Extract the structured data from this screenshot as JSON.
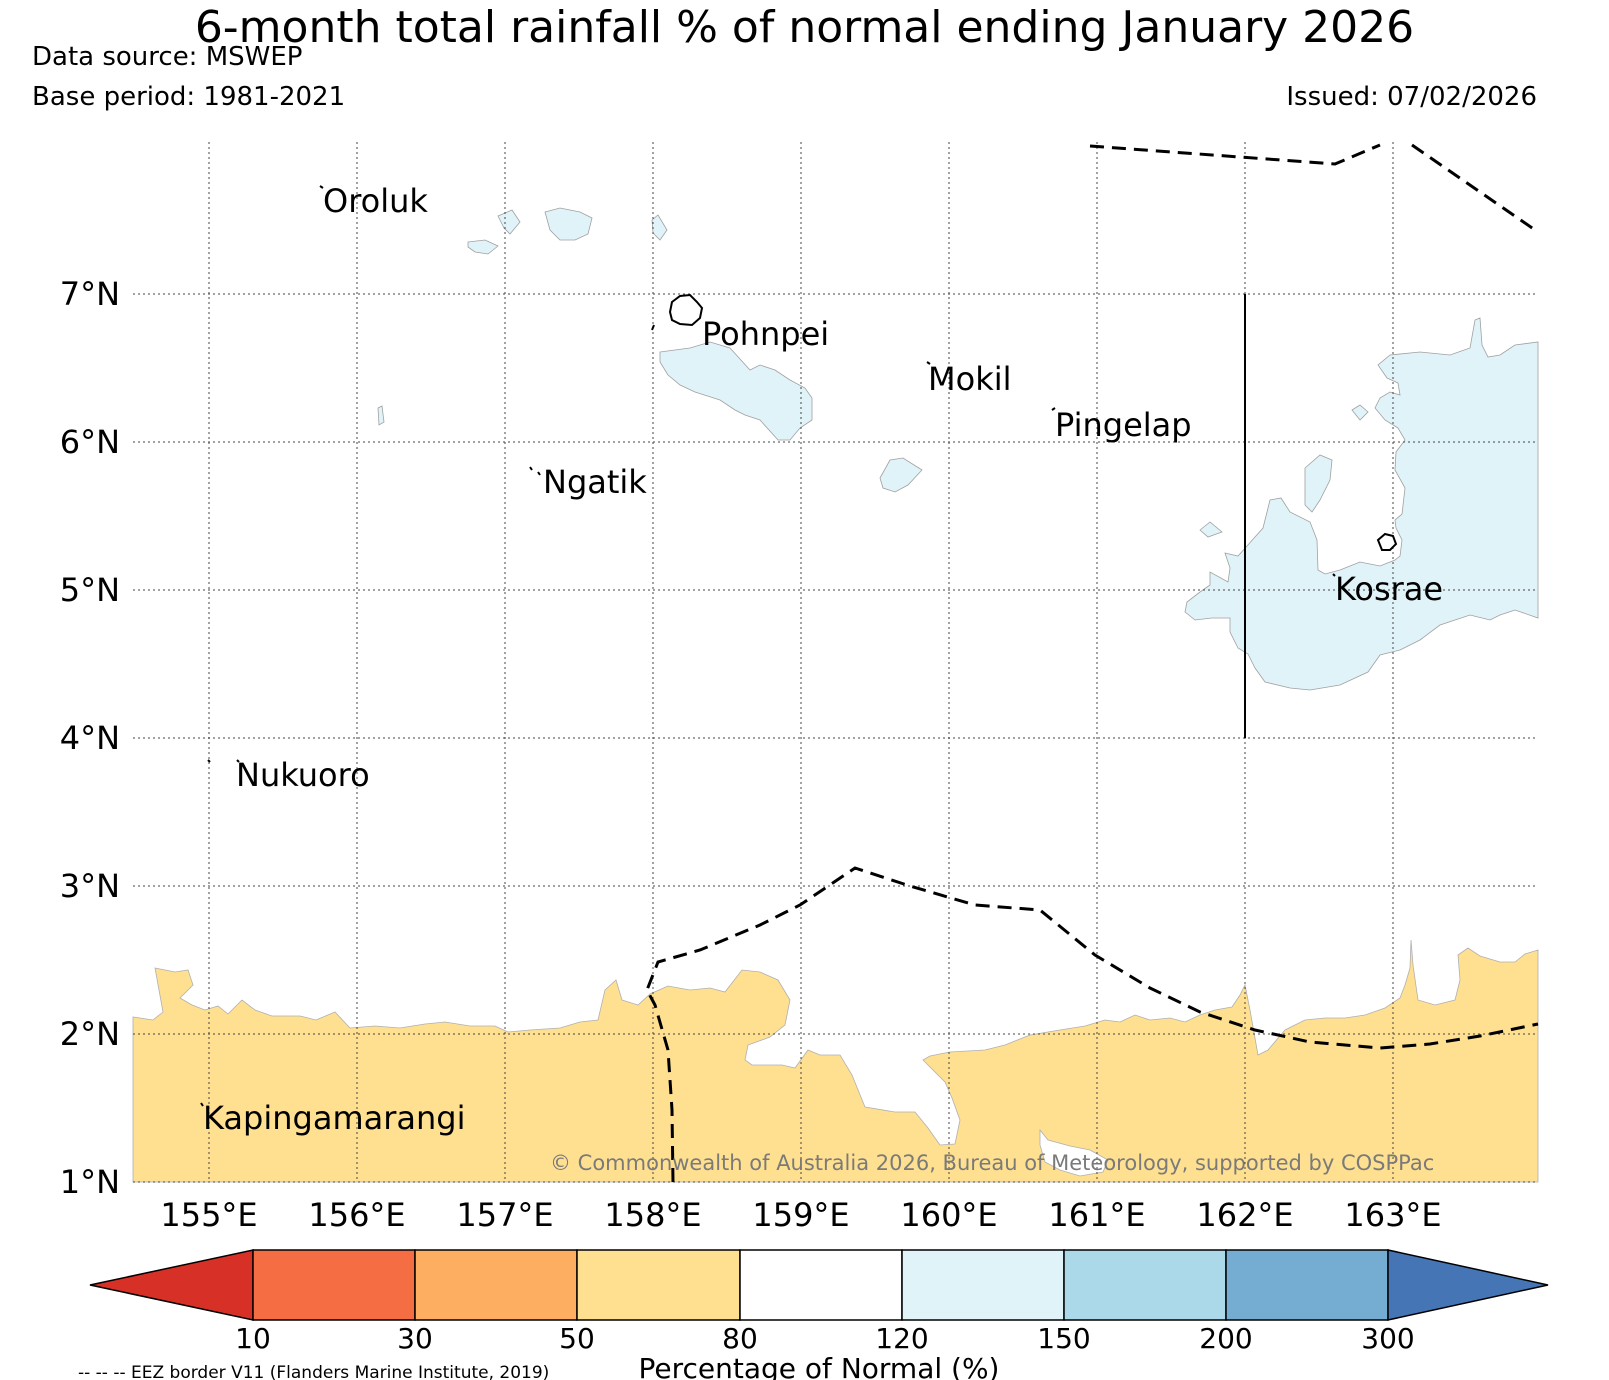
{
  "title": "6-month total rainfall % of normal ending January 2026",
  "data_source": "Data source: MSWEP",
  "base_period": "Base period: 1981-2021",
  "issued": "Issued: 07/02/2026",
  "copyright": "© Commonwealth of Australia 2026, Bureau of Meteorology, supported by COSPPac",
  "eez_note": "-- -- -- EEZ border V11 (Flanders Marine Institute, 2019)",
  "axes": {
    "lat_labels": [
      "7°N",
      "6°N",
      "5°N",
      "4°N",
      "3°N",
      "2°N",
      "1°N"
    ],
    "lon_labels": [
      "155°E",
      "156°E",
      "157°E",
      "158°E",
      "159°E",
      "160°E",
      "161°E",
      "162°E",
      "163°E"
    ],
    "lat_range": [
      1,
      8
    ],
    "lon_range": [
      154.5,
      164
    ]
  },
  "places": [
    "Oroluk",
    "Pohnpei",
    "Mokil",
    "Pingelap",
    "Ngatik",
    "Kosrae",
    "Nukuoro",
    "Kapingamarangi"
  ],
  "legend": {
    "label": "Percentage of Normal (%)",
    "ticks": [
      "10",
      "30",
      "50",
      "80",
      "120",
      "150",
      "200",
      "300"
    ],
    "bins": [
      {
        "range": "<10",
        "color": "#d73027"
      },
      {
        "range": "10-30",
        "color": "#f46d43"
      },
      {
        "range": "30-50",
        "color": "#fdae61"
      },
      {
        "range": "50-80",
        "color": "#fee090"
      },
      {
        "range": "80-120",
        "color": "#ffffff"
      },
      {
        "range": "120-150",
        "color": "#e0f3f8"
      },
      {
        "range": "150-200",
        "color": "#abd9e9"
      },
      {
        "range": "200-300",
        "color": "#74add1"
      },
      {
        "range": ">300",
        "color": "#4575b4"
      }
    ]
  },
  "colors": {
    "dry": "#fee090",
    "wet": "#e0f3f8"
  }
}
